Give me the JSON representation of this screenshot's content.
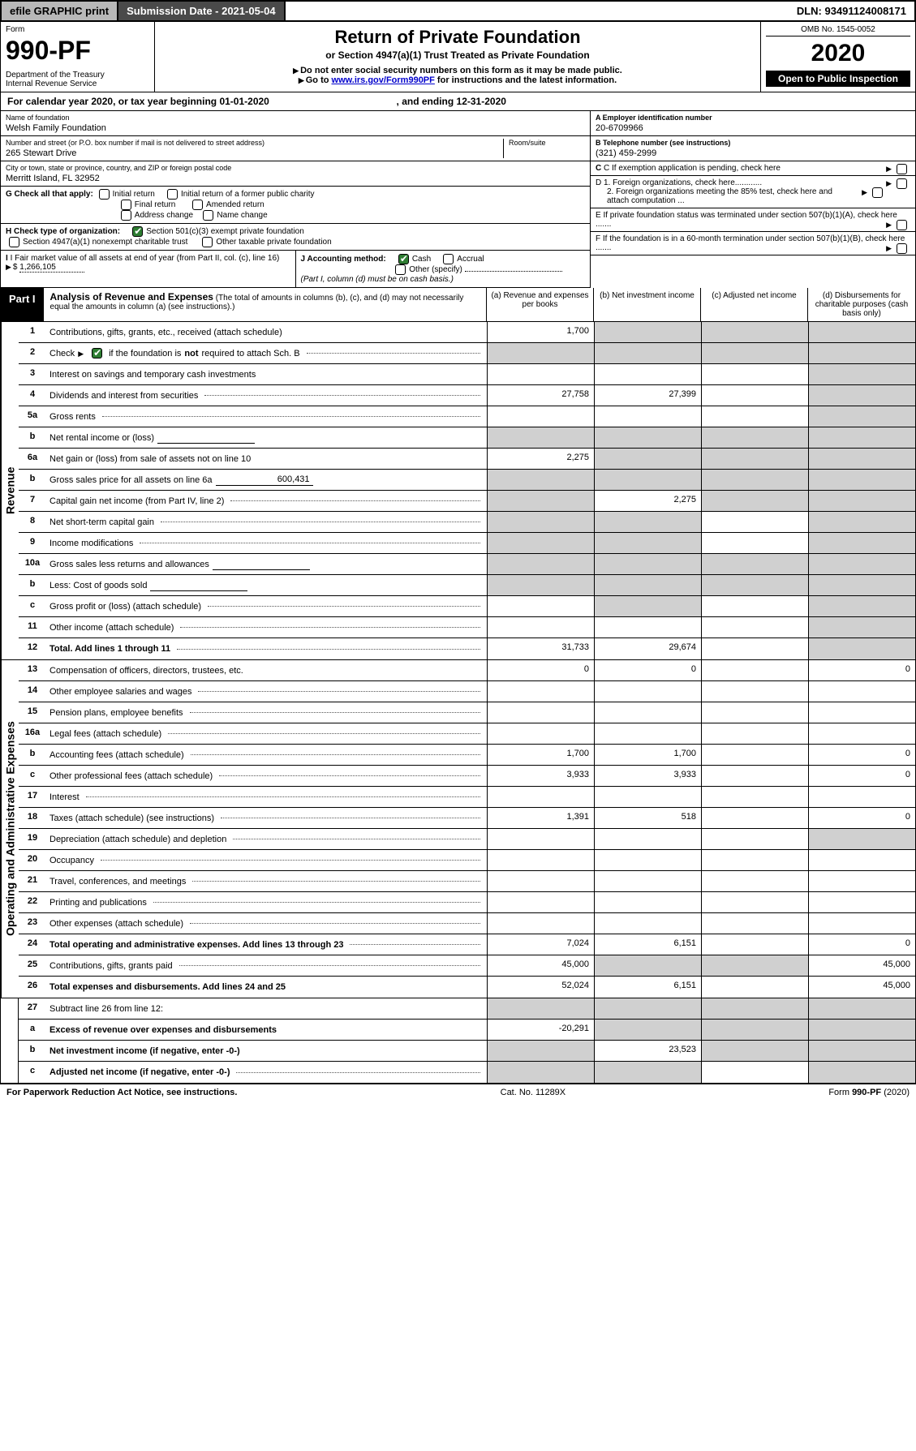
{
  "topbar": {
    "efile": "efile GRAPHIC print",
    "submission": "Submission Date - 2021-05-04",
    "dln": "DLN: 93491124008171"
  },
  "formhead": {
    "form_label": "Form",
    "form_number": "990-PF",
    "dept": "Department of the Treasury",
    "irs": "Internal Revenue Service",
    "title": "Return of Private Foundation",
    "subtitle": "or Section 4947(a)(1) Trust Treated as Private Foundation",
    "note1": "Do not enter social security numbers on this form as it may be made public.",
    "note2_pre": "Go to ",
    "note2_link": "www.irs.gov/Form990PF",
    "note2_post": " for instructions and the latest information.",
    "omb": "OMB No. 1545-0052",
    "year": "2020",
    "open": "Open to Public Inspection"
  },
  "calendar": {
    "text_pre": "For calendar year 2020, or tax year beginning ",
    "begin": "01-01-2020",
    "mid": " , and ending ",
    "end": "12-31-2020"
  },
  "entity": {
    "name_label": "Name of foundation",
    "name": "Welsh Family Foundation",
    "addr_label": "Number and street (or P.O. box number if mail is not delivered to street address)",
    "room_label": "Room/suite",
    "street": "265 Stewart Drive",
    "city_label": "City or town, state or province, country, and ZIP or foreign postal code",
    "city": "Merritt Island, FL  32952",
    "ein_label": "A Employer identification number",
    "ein": "20-6709966",
    "tel_label": "B Telephone number (see instructions)",
    "tel": "(321) 459-2999",
    "c_label": "C If exemption application is pending, check here",
    "d1": "D 1. Foreign organizations, check here............",
    "d2": "2. Foreign organizations meeting the 85% test, check here and attach computation ...",
    "e": "E  If private foundation status was terminated under section 507(b)(1)(A), check here .......",
    "f": "F  If the foundation is in a 60-month termination under section 507(b)(1)(B), check here .......",
    "g_label": "G Check all that apply:",
    "g_initial": "Initial return",
    "g_initial_former": "Initial return of a former public charity",
    "g_final": "Final return",
    "g_amended": "Amended return",
    "g_address": "Address change",
    "g_name": "Name change",
    "h_label": "H Check type of organization:",
    "h_501c3": "Section 501(c)(3) exempt private foundation",
    "h_4947": "Section 4947(a)(1) nonexempt charitable trust",
    "h_other": "Other taxable private foundation",
    "i_label": "I Fair market value of all assets at end of year (from Part II, col. (c), line 16)",
    "i_amount": "1,266,105",
    "j_label": "J Accounting method:",
    "j_cash": "Cash",
    "j_accrual": "Accrual",
    "j_other": "Other (specify)",
    "j_note": "(Part I, column (d) must be on cash basis.)"
  },
  "part1": {
    "label": "Part I",
    "title": "Analysis of Revenue and Expenses",
    "subtitle": "(The total of amounts in columns (b), (c), and (d) may not necessarily equal the amounts in column (a) (see instructions).)",
    "col_a": "(a)  Revenue and expenses per books",
    "col_b": "(b)  Net investment income",
    "col_c": "(c)  Adjusted net income",
    "col_d": "(d)  Disbursements for charitable purposes (cash basis only)"
  },
  "sections": {
    "revenue": "Revenue",
    "expenses": "Operating and Administrative Expenses"
  },
  "rows": {
    "r1": {
      "n": "1",
      "d": "",
      "a": "1,700",
      "b": "",
      "c": "",
      "shade": {
        "b": true,
        "c": true,
        "d": true
      }
    },
    "r2": {
      "n": "2",
      "d_pre": "Check",
      "d_post": "if the foundation is",
      "d_bold": "not",
      "d_tail": "required to attach Sch. B",
      "a": "",
      "b": "",
      "c": "",
      "d": "",
      "shade": {
        "a": true,
        "b": true,
        "c": true,
        "d": true
      }
    },
    "r3": {
      "n": "3",
      "d": "",
      "a": "",
      "b": "",
      "c": "",
      "shade": {
        "d": true
      }
    },
    "r4": {
      "n": "4",
      "d": "",
      "a": "27,758",
      "b": "27,399",
      "c": "",
      "shade": {
        "d": true
      }
    },
    "r5a": {
      "n": "5a",
      "d": "",
      "a": "",
      "b": "",
      "c": "",
      "shade": {
        "d": true
      }
    },
    "r5b": {
      "n": "b",
      "d": "",
      "inline": "",
      "a": "",
      "b": "",
      "c": "",
      "shade": {
        "a": true,
        "b": true,
        "c": true,
        "d": true
      }
    },
    "r6a": {
      "n": "6a",
      "d": "",
      "a": "2,275",
      "b": "",
      "c": "",
      "shade": {
        "b": true,
        "c": true,
        "d": true
      }
    },
    "r6b": {
      "n": "b",
      "d": "",
      "inline": "600,431",
      "a": "",
      "b": "",
      "c": "",
      "shade": {
        "a": true,
        "b": true,
        "c": true,
        "d": true
      }
    },
    "r7": {
      "n": "7",
      "d": "",
      "a": "",
      "b": "2,275",
      "c": "",
      "shade": {
        "a": true,
        "c": true,
        "d": true
      }
    },
    "r8": {
      "n": "8",
      "d": "",
      "a": "",
      "b": "",
      "c": "",
      "shade": {
        "a": true,
        "b": true,
        "d": true
      }
    },
    "r9": {
      "n": "9",
      "d": "",
      "a": "",
      "b": "",
      "c": "",
      "shade": {
        "a": true,
        "b": true,
        "d": true
      }
    },
    "r10a": {
      "n": "10a",
      "d": "",
      "inline": "",
      "a": "",
      "b": "",
      "c": "",
      "shade": {
        "a": true,
        "b": true,
        "c": true,
        "d": true
      }
    },
    "r10b": {
      "n": "b",
      "d": "",
      "inline": "",
      "a": "",
      "b": "",
      "c": "",
      "shade": {
        "a": true,
        "b": true,
        "c": true,
        "d": true
      }
    },
    "r10c": {
      "n": "c",
      "d": "",
      "a": "",
      "b": "",
      "c": "",
      "shade": {
        "b": true,
        "d": true
      }
    },
    "r11": {
      "n": "11",
      "d": "",
      "a": "",
      "b": "",
      "c": "",
      "shade": {
        "d": true
      }
    },
    "r12": {
      "n": "12",
      "d": "",
      "bold": true,
      "a": "31,733",
      "b": "29,674",
      "c": "",
      "shade": {
        "d": true
      }
    },
    "r13": {
      "n": "13",
      "d": "0",
      "a": "0",
      "b": "0",
      "c": ""
    },
    "r14": {
      "n": "14",
      "d": "",
      "a": "",
      "b": "",
      "c": ""
    },
    "r15": {
      "n": "15",
      "d": "",
      "a": "",
      "b": "",
      "c": ""
    },
    "r16a": {
      "n": "16a",
      "d": "",
      "a": "",
      "b": "",
      "c": ""
    },
    "r16b": {
      "n": "b",
      "d": "0",
      "a": "1,700",
      "b": "1,700",
      "c": ""
    },
    "r16c": {
      "n": "c",
      "d": "0",
      "a": "3,933",
      "b": "3,933",
      "c": ""
    },
    "r17": {
      "n": "17",
      "d": "",
      "a": "",
      "b": "",
      "c": ""
    },
    "r18": {
      "n": "18",
      "d": "0",
      "a": "1,391",
      "b": "518",
      "c": ""
    },
    "r19": {
      "n": "19",
      "d": "",
      "a": "",
      "b": "",
      "c": "",
      "shade": {
        "d": true
      }
    },
    "r20": {
      "n": "20",
      "d": "",
      "a": "",
      "b": "",
      "c": ""
    },
    "r21": {
      "n": "21",
      "d": "",
      "a": "",
      "b": "",
      "c": ""
    },
    "r22": {
      "n": "22",
      "d": "",
      "a": "",
      "b": "",
      "c": ""
    },
    "r23": {
      "n": "23",
      "d": "",
      "a": "",
      "b": "",
      "c": ""
    },
    "r24": {
      "n": "24",
      "d": "0",
      "bold": true,
      "a": "7,024",
      "b": "6,151",
      "c": ""
    },
    "r25": {
      "n": "25",
      "d": "45,000",
      "a": "45,000",
      "b": "",
      "c": "",
      "shade": {
        "b": true,
        "c": true
      }
    },
    "r26": {
      "n": "26",
      "d": "45,000",
      "bold": true,
      "a": "52,024",
      "b": "6,151",
      "c": ""
    },
    "r27": {
      "n": "27",
      "d": "",
      "a": "",
      "b": "",
      "c": "",
      "shade": {
        "a": true,
        "b": true,
        "c": true,
        "d": true
      }
    },
    "r27a": {
      "n": "a",
      "d": "",
      "bold": true,
      "a": "-20,291",
      "b": "",
      "c": "",
      "shade": {
        "b": true,
        "c": true,
        "d": true
      }
    },
    "r27b": {
      "n": "b",
      "d": "",
      "bold": true,
      "a": "",
      "b": "23,523",
      "c": "",
      "shade": {
        "a": true,
        "c": true,
        "d": true
      }
    },
    "r27c": {
      "n": "c",
      "d": "",
      "bold": true,
      "a": "",
      "b": "",
      "c": "",
      "shade": {
        "a": true,
        "b": true,
        "d": true
      }
    }
  },
  "footer": {
    "left": "For Paperwork Reduction Act Notice, see instructions.",
    "mid": "Cat. No. 11289X",
    "right": "Form 990-PF (2020)"
  }
}
